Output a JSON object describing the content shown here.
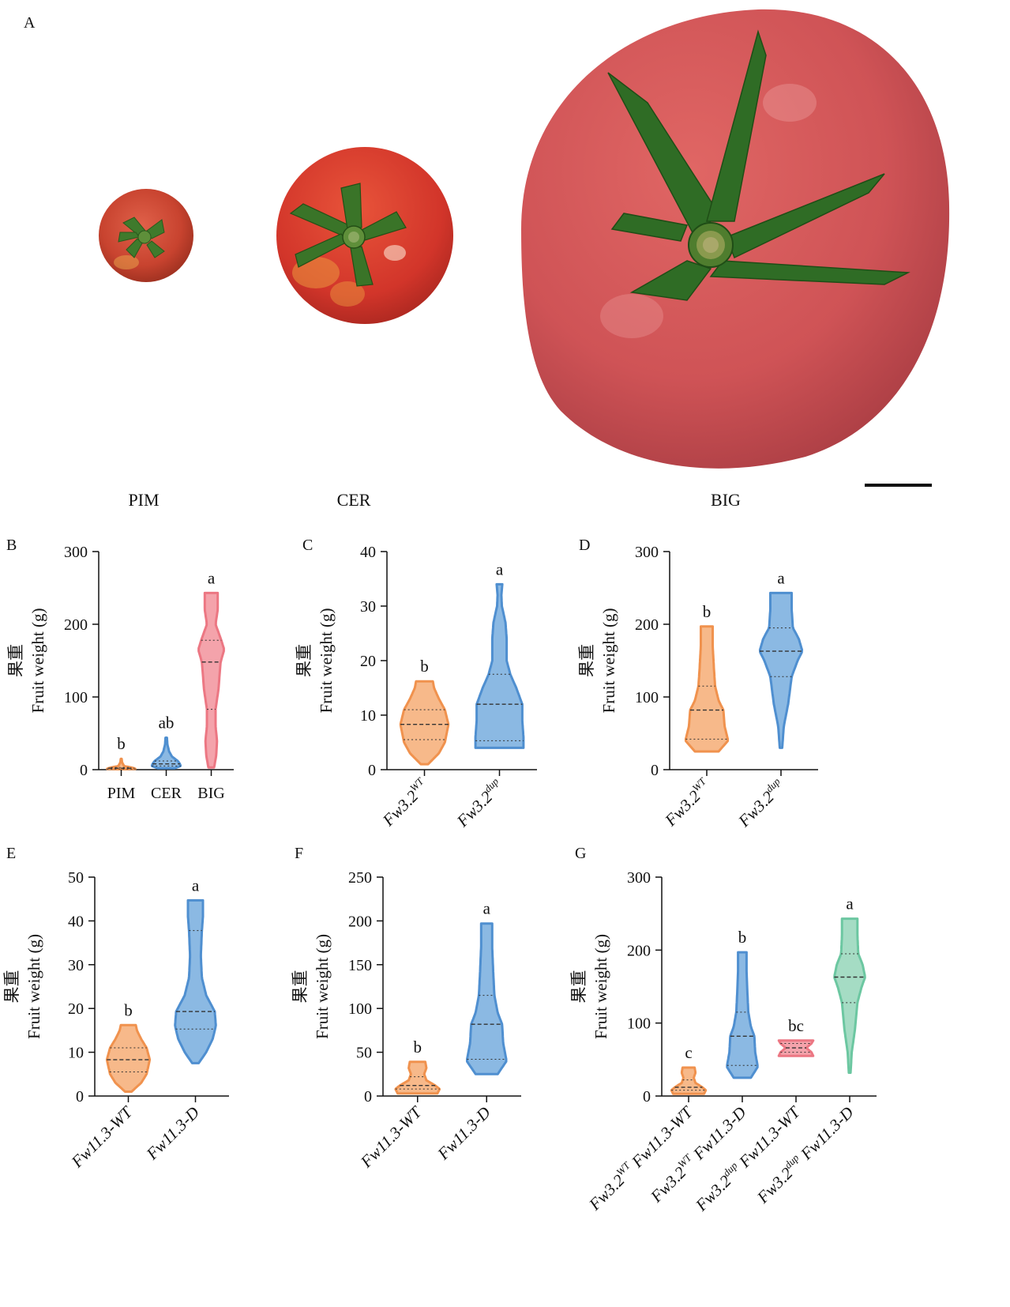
{
  "panel_a": {
    "letter": "A",
    "labels": [
      "PIM",
      "CER",
      "BIG"
    ]
  },
  "colors": {
    "orange_fill": "#f7b98a",
    "orange_stroke": "#f0924e",
    "blue_fill": "#8bb9e3",
    "blue_stroke": "#4f8fd0",
    "pink_fill": "#f4a3ab",
    "pink_stroke": "#ec7783",
    "green_fill": "#a5dcc4",
    "green_stroke": "#6cc7a1"
  },
  "chart_data": [
    {
      "id": "B",
      "letter": "B",
      "type": "violin",
      "ylabel_cn": "果重",
      "ylabel": "Fruit weight (g)",
      "ylim": [
        0,
        300
      ],
      "yticks": [
        0,
        100,
        200,
        300
      ],
      "categories": [
        "PIM",
        "CER",
        "BIG"
      ],
      "italic_categories": false,
      "rotate_labels": false,
      "series": [
        {
          "category": "PIM",
          "color": "orange",
          "min": 0.5,
          "max": 15,
          "median": 2,
          "q1": 1,
          "q3": 3,
          "letter": "b",
          "shape": [
            [
              0.5,
              0.2
            ],
            [
              1,
              1
            ],
            [
              2,
              0.9
            ],
            [
              3,
              0.7
            ],
            [
              5,
              0.2
            ],
            [
              10,
              0.06
            ],
            [
              15,
              0.03
            ]
          ]
        },
        {
          "category": "CER",
          "color": "blue",
          "min": 2,
          "max": 44,
          "median": 8,
          "q1": 5,
          "q3": 12,
          "letter": "ab",
          "shape": [
            [
              2,
              0.6
            ],
            [
              5,
              1
            ],
            [
              8,
              0.95
            ],
            [
              12,
              0.8
            ],
            [
              18,
              0.4
            ],
            [
              25,
              0.2
            ],
            [
              35,
              0.08
            ],
            [
              44,
              0.05
            ]
          ]
        },
        {
          "category": "BIG",
          "color": "pink",
          "min": 3,
          "max": 243,
          "median": 148,
          "q1": 83,
          "q3": 178,
          "letter": "a",
          "shape": [
            [
              3,
              0.2
            ],
            [
              20,
              0.35
            ],
            [
              40,
              0.4
            ],
            [
              60,
              0.3
            ],
            [
              83,
              0.3
            ],
            [
              110,
              0.5
            ],
            [
              148,
              0.65
            ],
            [
              165,
              0.9
            ],
            [
              178,
              0.7
            ],
            [
              200,
              0.3
            ],
            [
              220,
              0.45
            ],
            [
              243,
              0.45
            ]
          ]
        }
      ]
    },
    {
      "id": "C",
      "letter": "C",
      "type": "violin",
      "ylabel_cn": "果重",
      "ylabel": "Fruit weight (g)",
      "ylim": [
        0,
        40
      ],
      "yticks": [
        0,
        10,
        20,
        30,
        40
      ],
      "categories": [
        {
          "base": "Fw3.2",
          "sup": "WT"
        },
        {
          "base": "Fw3.2",
          "sup": "dup"
        }
      ],
      "italic_categories": true,
      "rotate_labels": true,
      "series": [
        {
          "color": "orange",
          "min": 1,
          "max": 16.2,
          "median": 8.3,
          "q1": 5.5,
          "q3": 11,
          "letter": "b",
          "shape": [
            [
              1,
              0.15
            ],
            [
              3,
              0.6
            ],
            [
              5,
              0.85
            ],
            [
              8.3,
              1
            ],
            [
              11,
              0.85
            ],
            [
              13,
              0.6
            ],
            [
              15,
              0.4
            ],
            [
              16.2,
              0.35
            ]
          ]
        },
        {
          "color": "blue",
          "min": 4,
          "max": 34,
          "median": 12,
          "q1": 5.3,
          "q3": 17.5,
          "letter": "a",
          "shape": [
            [
              4,
              1
            ],
            [
              6,
              1
            ],
            [
              9,
              0.95
            ],
            [
              12,
              0.95
            ],
            [
              15,
              0.7
            ],
            [
              17.5,
              0.45
            ],
            [
              20,
              0.3
            ],
            [
              24,
              0.3
            ],
            [
              27,
              0.25
            ],
            [
              30,
              0.1
            ],
            [
              32,
              0.08
            ],
            [
              34,
              0.12
            ]
          ]
        }
      ]
    },
    {
      "id": "D",
      "letter": "D",
      "type": "violin",
      "ylabel_cn": "果重",
      "ylabel": "Fruit weight (g)",
      "ylim": [
        0,
        300
      ],
      "yticks": [
        0,
        100,
        200,
        300
      ],
      "categories": [
        {
          "base": "Fw3.2",
          "sup": "WT"
        },
        {
          "base": "Fw3.2",
          "sup": "dup"
        }
      ],
      "italic_categories": true,
      "rotate_labels": true,
      "series": [
        {
          "color": "orange",
          "min": 25,
          "max": 197,
          "median": 82,
          "q1": 42,
          "q3": 115,
          "letter": "b",
          "shape": [
            [
              25,
              0.5
            ],
            [
              40,
              0.9
            ],
            [
              60,
              0.75
            ],
            [
              82,
              0.7
            ],
            [
              95,
              0.5
            ],
            [
              115,
              0.35
            ],
            [
              140,
              0.3
            ],
            [
              170,
              0.25
            ],
            [
              197,
              0.25
            ]
          ]
        },
        {
          "color": "blue",
          "min": 30,
          "max": 243,
          "median": 163,
          "q1": 128,
          "q3": 195,
          "letter": "a",
          "shape": [
            [
              30,
              0.05
            ],
            [
              60,
              0.12
            ],
            [
              90,
              0.3
            ],
            [
              128,
              0.45
            ],
            [
              150,
              0.7
            ],
            [
              163,
              0.9
            ],
            [
              180,
              0.75
            ],
            [
              195,
              0.5
            ],
            [
              220,
              0.45
            ],
            [
              243,
              0.45
            ]
          ]
        }
      ]
    },
    {
      "id": "E",
      "letter": "E",
      "type": "violin",
      "ylabel_cn": "果重",
      "ylabel": "Fruit weight (g)",
      "ylim": [
        0,
        50
      ],
      "yticks": [
        0,
        10,
        20,
        30,
        40,
        50
      ],
      "categories": [
        {
          "base": "Fw11.3-WT"
        },
        {
          "base": "Fw11.3-D"
        }
      ],
      "italic_categories": true,
      "rotate_labels": true,
      "series": [
        {
          "color": "orange",
          "min": 1,
          "max": 16.2,
          "median": 8.3,
          "q1": 5.5,
          "q3": 11,
          "letter": "b",
          "shape": [
            [
              1,
              0.15
            ],
            [
              3,
              0.6
            ],
            [
              5,
              0.85
            ],
            [
              8.3,
              1
            ],
            [
              11,
              0.85
            ],
            [
              13,
              0.6
            ],
            [
              15,
              0.4
            ],
            [
              16.2,
              0.35
            ]
          ]
        },
        {
          "color": "blue",
          "min": 7.5,
          "max": 44.7,
          "median": 19.3,
          "q1": 15.3,
          "q3": 37.8,
          "letter": "a",
          "shape": [
            [
              7.5,
              0.15
            ],
            [
              10,
              0.5
            ],
            [
              13,
              0.8
            ],
            [
              16,
              0.95
            ],
            [
              19.3,
              0.9
            ],
            [
              23,
              0.5
            ],
            [
              27,
              0.3
            ],
            [
              32,
              0.25
            ],
            [
              37.8,
              0.3
            ],
            [
              41,
              0.35
            ],
            [
              44.7,
              0.35
            ]
          ]
        }
      ]
    },
    {
      "id": "F",
      "letter": "F",
      "type": "violin",
      "ylabel_cn": "果重",
      "ylabel": "Fruit weight (g)",
      "ylim": [
        0,
        250
      ],
      "yticks": [
        0,
        50,
        100,
        150,
        200,
        250
      ],
      "categories": [
        {
          "base": "Fw11.3-WT"
        },
        {
          "base": "Fw11.3-D"
        }
      ],
      "italic_categories": true,
      "rotate_labels": true,
      "series": [
        {
          "color": "orange",
          "min": 3,
          "max": 39,
          "median": 12,
          "q1": 8,
          "q3": 22,
          "letter": "b",
          "shape": [
            [
              3,
              0.9
            ],
            [
              8,
              1
            ],
            [
              12,
              0.8
            ],
            [
              18,
              0.4
            ],
            [
              25,
              0.3
            ],
            [
              32,
              0.4
            ],
            [
              39,
              0.35
            ]
          ]
        },
        {
          "color": "blue",
          "min": 25,
          "max": 197,
          "median": 82,
          "q1": 42,
          "q3": 115,
          "letter": "a",
          "shape": [
            [
              25,
              0.5
            ],
            [
              40,
              0.9
            ],
            [
              60,
              0.75
            ],
            [
              82,
              0.7
            ],
            [
              95,
              0.5
            ],
            [
              115,
              0.35
            ],
            [
              140,
              0.3
            ],
            [
              170,
              0.25
            ],
            [
              197,
              0.25
            ]
          ]
        }
      ]
    },
    {
      "id": "G",
      "letter": "G",
      "type": "violin",
      "ylabel_cn": "果重",
      "ylabel": "Fruit weight (g)",
      "ylim": [
        0,
        300
      ],
      "yticks": [
        0,
        100,
        200,
        300
      ],
      "categories": [
        {
          "base": "Fw3.2",
          "sup": "WT",
          "rest": " Fw11.3-WT"
        },
        {
          "base": "Fw3.2",
          "sup": "WT",
          "rest": " Fw11.3-D"
        },
        {
          "base": "Fw3.2",
          "sup": "dup",
          "rest": " Fw11.3-WT"
        },
        {
          "base": "Fw3.2",
          "sup": "dup",
          "rest": " Fw11.3-D"
        }
      ],
      "italic_categories": true,
      "rotate_labels": true,
      "series": [
        {
          "color": "orange",
          "min": 3,
          "max": 39,
          "median": 12,
          "q1": 8,
          "q3": 22,
          "letter": "c",
          "shape": [
            [
              3,
              0.9
            ],
            [
              8,
              1
            ],
            [
              12,
              0.8
            ],
            [
              18,
              0.4
            ],
            [
              25,
              0.3
            ],
            [
              32,
              0.4
            ],
            [
              39,
              0.35
            ]
          ]
        },
        {
          "color": "blue",
          "min": 25,
          "max": 197,
          "median": 82,
          "q1": 42,
          "q3": 115,
          "letter": "b",
          "shape": [
            [
              25,
              0.5
            ],
            [
              40,
              0.9
            ],
            [
              60,
              0.75
            ],
            [
              82,
              0.7
            ],
            [
              95,
              0.5
            ],
            [
              115,
              0.35
            ],
            [
              140,
              0.3
            ],
            [
              170,
              0.25
            ],
            [
              197,
              0.25
            ]
          ]
        },
        {
          "color": "pink",
          "min": 55,
          "max": 76,
          "median": 66,
          "q1": 60,
          "q3": 72,
          "letter": "bc",
          "shape": [
            [
              55,
              1
            ],
            [
              60,
              0.9
            ],
            [
              66,
              0.6
            ],
            [
              72,
              0.9
            ],
            [
              76,
              1
            ]
          ]
        },
        {
          "color": "green",
          "min": 32,
          "max": 243,
          "median": 163,
          "q1": 128,
          "q3": 195,
          "letter": "a",
          "shape": [
            [
              32,
              0.05
            ],
            [
              60,
              0.12
            ],
            [
              90,
              0.3
            ],
            [
              128,
              0.45
            ],
            [
              150,
              0.7
            ],
            [
              163,
              0.9
            ],
            [
              180,
              0.75
            ],
            [
              195,
              0.5
            ],
            [
              220,
              0.45
            ],
            [
              243,
              0.45
            ]
          ]
        }
      ]
    }
  ]
}
